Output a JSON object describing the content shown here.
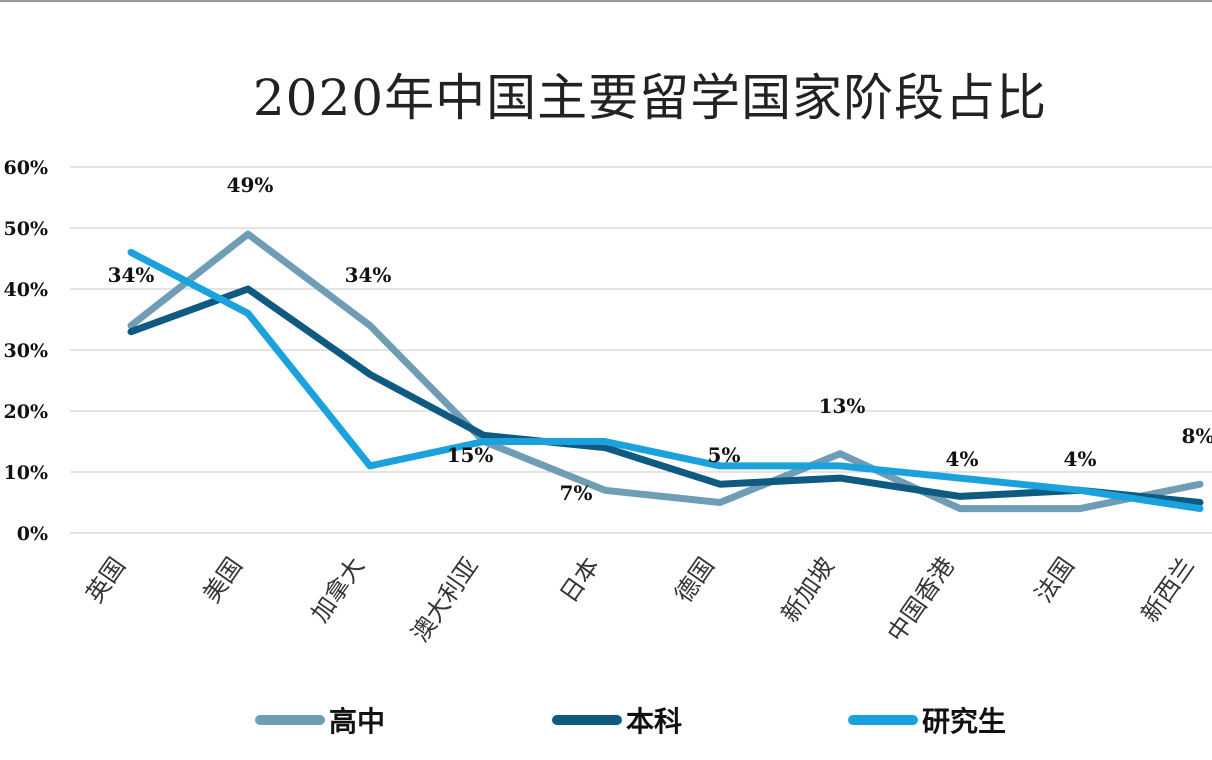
{
  "title": "2020年中国主要留学国家阶段占比",
  "legend": [
    {
      "label": "高中",
      "color": "#6f9db5"
    },
    {
      "label": "本科",
      "color": "#0f5a80"
    },
    {
      "label": "研究生",
      "color": "#1ba2dd"
    }
  ],
  "chart_data": {
    "type": "line",
    "title": "2020年中国主要留学国家阶段占比",
    "xlabel": "",
    "ylabel": "",
    "ylim": [
      0,
      60
    ],
    "yticks": [
      "0%",
      "10%",
      "20%",
      "30%",
      "40%",
      "50%",
      "60%"
    ],
    "grid": true,
    "legend_position": "bottom",
    "categories": [
      "英国",
      "美国",
      "加拿大",
      "澳大利亚",
      "日本",
      "德国",
      "新加坡",
      "中国香港",
      "法国",
      "新西兰"
    ],
    "series": [
      {
        "name": "高中",
        "color": "#6f9db5",
        "values": [
          34,
          49,
          34,
          15,
          7,
          5,
          13,
          4,
          4,
          8
        ]
      },
      {
        "name": "本科",
        "color": "#0f5a80",
        "values": [
          33,
          40,
          26,
          16,
          14,
          8,
          9,
          6,
          7,
          5
        ]
      },
      {
        "name": "研究生",
        "color": "#1ba2dd",
        "values": [
          46,
          36,
          11,
          15,
          15,
          11,
          11,
          9,
          7,
          4
        ]
      }
    ],
    "data_labels": [
      {
        "series": "高中",
        "category": "英国",
        "text": "34%"
      },
      {
        "series": "高中",
        "category": "美国",
        "text": "49%"
      },
      {
        "series": "高中",
        "category": "加拿大",
        "text": "34%"
      },
      {
        "series": "高中",
        "category": "澳大利亚",
        "text": "15%"
      },
      {
        "series": "高中",
        "category": "日本",
        "text": "7%"
      },
      {
        "series": "高中",
        "category": "德国",
        "text": "5%"
      },
      {
        "series": "高中",
        "category": "新加坡",
        "text": "13%"
      },
      {
        "series": "高中",
        "category": "中国香港",
        "text": "4%"
      },
      {
        "series": "高中",
        "category": "法国",
        "text": "4%"
      },
      {
        "series": "高中",
        "category": "新西兰",
        "text": "8%"
      }
    ]
  }
}
